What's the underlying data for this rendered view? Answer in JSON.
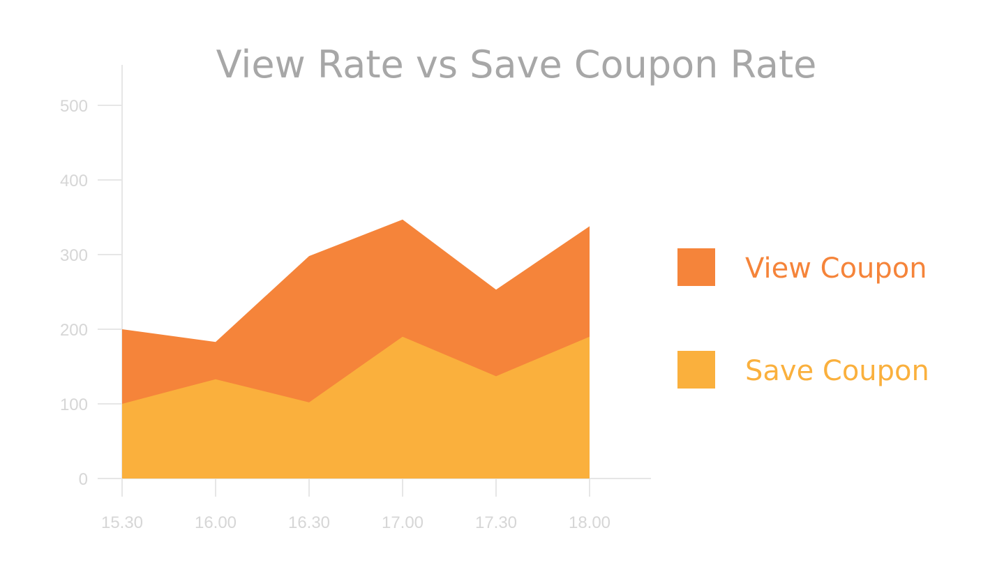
{
  "chart_data": {
    "type": "area",
    "title": "View Rate vs Save Coupon Rate",
    "xlabel": "",
    "ylabel": "",
    "categories": [
      "15.30",
      "16.00",
      "16.30",
      "17.00",
      "17.30",
      "18.00"
    ],
    "ylim": [
      0,
      500
    ],
    "yticks": [
      0,
      100,
      200,
      300,
      400,
      500
    ],
    "stacking": "overlay",
    "grid": false,
    "legend_position": "right",
    "series": [
      {
        "name": "View Coupon",
        "values": [
          200,
          183,
          298,
          347,
          253,
          338
        ],
        "color": "#f5843a"
      },
      {
        "name": "Save Coupon",
        "values": [
          100,
          133,
          102,
          190,
          137,
          190
        ],
        "color": "#fab03d"
      }
    ],
    "axis_color": "#e6e6e6",
    "tick_label_color": "#d6d6d6",
    "title_color": "#a7a7a7"
  }
}
